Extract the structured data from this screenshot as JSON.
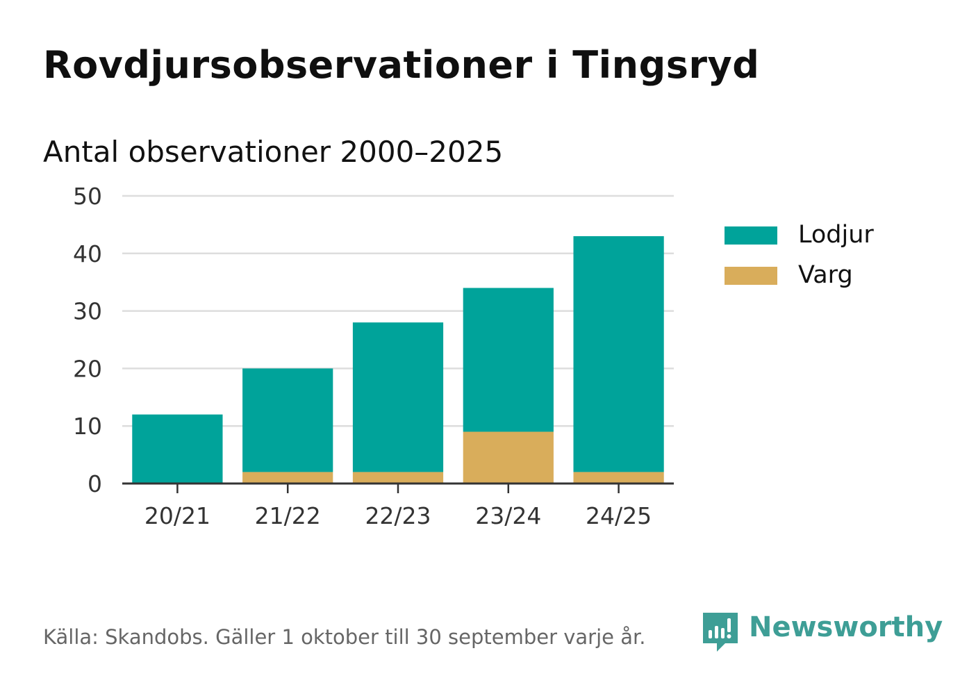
{
  "header": {
    "title": "Rovdjursobservationer i Tingsryd",
    "subtitle": "Antal observationer 2000–2025"
  },
  "chart_data": {
    "type": "bar",
    "stacked": true,
    "categories": [
      "20/21",
      "21/22",
      "22/23",
      "23/24",
      "24/25"
    ],
    "series": [
      {
        "name": "Varg",
        "values": [
          0,
          2,
          2,
          9,
          2
        ],
        "color": "#d9ad5b"
      },
      {
        "name": "Lodjur",
        "values": [
          12,
          18,
          26,
          25,
          41
        ],
        "color": "#00a39a"
      }
    ],
    "ylim": [
      0,
      50
    ],
    "yticks": [
      0,
      10,
      20,
      30,
      40,
      50
    ],
    "grid": true,
    "legend_position": "right",
    "legend_order": [
      "Lodjur",
      "Varg"
    ]
  },
  "legend": {
    "items": [
      {
        "label": "Lodjur",
        "color": "#00a39a"
      },
      {
        "label": "Varg",
        "color": "#d9ad5b"
      }
    ]
  },
  "footer": {
    "source": "Källa: Skandobs. Gäller 1 oktober till 30 september varje år."
  },
  "brand": {
    "name": "Newsworthy",
    "icon": "newsworthy-logo-icon",
    "color": "#3e9e96"
  }
}
